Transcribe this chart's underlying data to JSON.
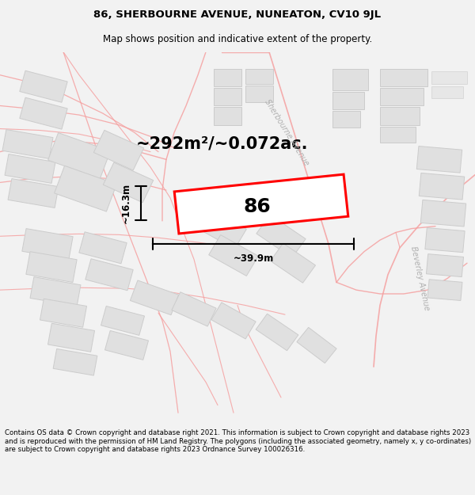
{
  "title": "86, SHERBOURNE AVENUE, NUNEATON, CV10 9JL",
  "subtitle": "Map shows position and indicative extent of the property.",
  "footer": "Contains OS data © Crown copyright and database right 2021. This information is subject to Crown copyright and database rights 2023 and is reproduced with the permission of HM Land Registry. The polygons (including the associated geometry, namely x, y co-ordinates) are subject to Crown copyright and database rights 2023 Ordnance Survey 100026316.",
  "area_label": "~292m²/~0.072ac.",
  "number_label": "86",
  "width_label": "~39.9m",
  "height_label": "~16.3m",
  "bg_color": "#f2f2f2",
  "map_bg": "#ffffff",
  "road_color": "#f5a0a0",
  "road_lw": 1.0,
  "building_color": "#e0e0e0",
  "building_outline": "#cccccc",
  "building_lw": 0.7,
  "plot_color": "#ff0000",
  "dim_color": "#000000",
  "title_fontsize": 9.5,
  "subtitle_fontsize": 8.5,
  "footer_fontsize": 6.2,
  "area_fontsize": 15,
  "number_fontsize": 18,
  "dim_fontsize": 8.5,
  "road_label_color": "#b0b0b0",
  "road_label_size": 7
}
